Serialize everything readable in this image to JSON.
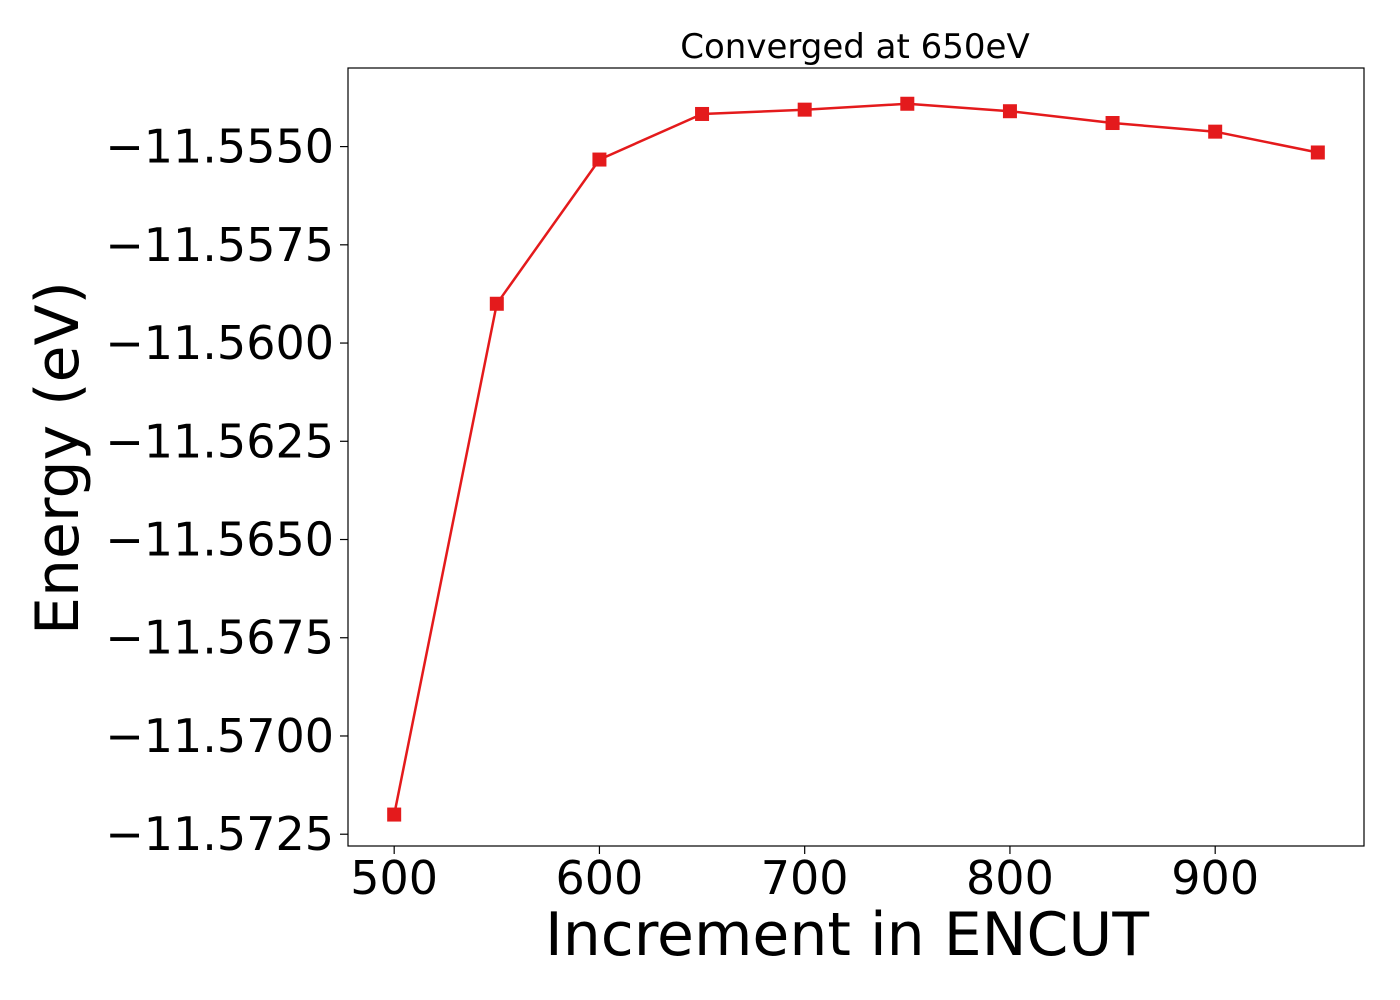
{
  "chart_data": {
    "type": "line",
    "title": "Converged at 650eV",
    "xlabel": "Increment in ENCUT",
    "ylabel": "Energy (eV)",
    "x": [
      500,
      550,
      600,
      650,
      700,
      750,
      800,
      850,
      900,
      950
    ],
    "series": [
      {
        "values": [
          -11.572,
          -11.559,
          -11.55533,
          -11.55417,
          -11.55406,
          -11.55391,
          -11.5541,
          -11.5544,
          -11.55462,
          -11.55515
        ],
        "color": "#e41a1c",
        "marker": "square"
      }
    ],
    "xlim": [
      477.5,
      972.5
    ],
    "ylim": [
      -11.5728,
      -11.553
    ],
    "x_ticks": [
      500,
      600,
      700,
      800,
      900
    ],
    "x_tick_labels": [
      "500",
      "600",
      "700",
      "800",
      "900"
    ],
    "y_ticks": [
      -11.5725,
      -11.57,
      -11.5675,
      -11.565,
      -11.5625,
      -11.56,
      -11.5575,
      -11.555
    ],
    "y_tick_labels": [
      "−11.5725",
      "−11.5700",
      "−11.5675",
      "−11.5650",
      "−11.5625",
      "−11.5600",
      "−11.5575",
      "−11.5550"
    ],
    "grid": false,
    "legend": "none"
  }
}
